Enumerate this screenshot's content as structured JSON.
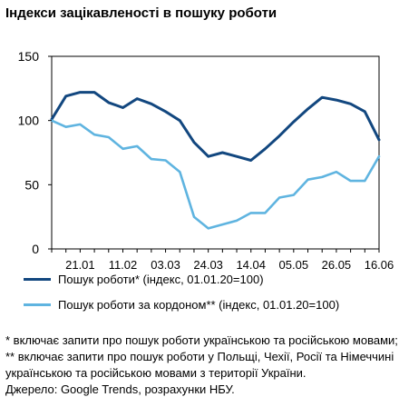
{
  "title": "Індекси зацікавленості в пошуку роботи",
  "colors": {
    "series1": "#12477f",
    "series2": "#5fb4e0",
    "axis": "#000000"
  },
  "chart_data": {
    "type": "line",
    "categories": [
      "07.01",
      "14.01",
      "21.01",
      "28.01",
      "04.02",
      "11.02",
      "18.02",
      "25.02",
      "03.03",
      "10.03",
      "17.03",
      "24.03",
      "31.03",
      "07.04",
      "14.04",
      "21.04",
      "28.04",
      "05.05",
      "12.05",
      "19.05",
      "26.05",
      "02.06",
      "09.06",
      "16.06"
    ],
    "xtick_labels": [
      "21.01",
      "11.02",
      "03.03",
      "24.03",
      "14.04",
      "05.05",
      "26.05",
      "16.06"
    ],
    "yticks": [
      0,
      50,
      100,
      150
    ],
    "ylim": [
      0,
      150
    ],
    "grid": false,
    "legend_position": "bottom",
    "series": [
      {
        "name": "Пошук роботи* (індекс, 01.01.20=100)",
        "values": [
          101,
          119,
          122,
          122,
          114,
          110,
          117,
          113,
          107,
          100,
          83,
          72,
          75,
          72,
          69,
          78,
          88,
          99,
          109,
          118,
          116,
          113,
          107,
          85
        ]
      },
      {
        "name": "Пошук роботи за кордоном** (індекс, 01.01.20=100)",
        "values": [
          100,
          95,
          97,
          89,
          87,
          78,
          80,
          70,
          69,
          60,
          25,
          16,
          19,
          22,
          28,
          28,
          40,
          42,
          54,
          56,
          60,
          53,
          53,
          72
        ]
      }
    ]
  },
  "notes": {
    "line1": "* включає запити про пошук роботи українською та російською мовами; ** включає запити про пошук роботи у Польщі, Чехії, Росії та Німеччині українською та російською мовами з території України.",
    "source": "Джерело: Google Trends, розрахунки НБУ."
  }
}
